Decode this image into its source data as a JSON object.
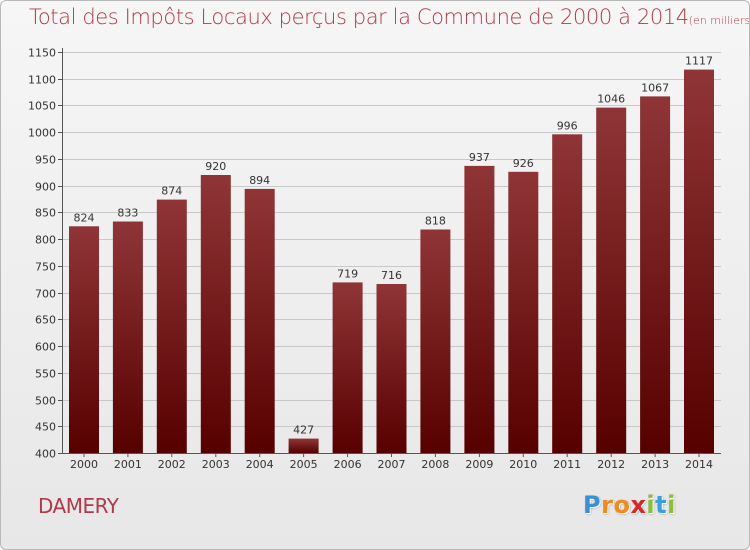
{
  "chart_data": {
    "type": "bar",
    "title": "Total des Impôts Locaux perçus par la Commune de 2000 à 2014",
    "unit_note": "(en milliers d'€)",
    "categories": [
      "2000",
      "2001",
      "2002",
      "2003",
      "2004",
      "2005",
      "2006",
      "2007",
      "2008",
      "2009",
      "2010",
      "2011",
      "2012",
      "2013",
      "2014"
    ],
    "values": [
      824,
      833,
      874,
      920,
      894,
      427,
      719,
      716,
      818,
      937,
      926,
      996,
      1046,
      1067,
      1117
    ],
    "ylim": [
      400,
      1150
    ],
    "yticks": [
      400,
      450,
      500,
      550,
      600,
      650,
      700,
      750,
      800,
      850,
      900,
      950,
      1000,
      1050,
      1100,
      1150
    ],
    "xlabel": "",
    "ylabel": "",
    "grid": true,
    "bar_color_top": "#8f3537",
    "bar_color_bottom": "#570000"
  },
  "commune": "DAMERY",
  "logo": {
    "letters": [
      "P",
      "r",
      "o",
      "x",
      "i",
      "t",
      "i"
    ],
    "colors": [
      "#3a8fd6",
      "#f08a1c",
      "#f08a1c",
      "#d8262b",
      "#8bbf3a",
      "#3aa0d8",
      "#8bbf3a"
    ]
  }
}
